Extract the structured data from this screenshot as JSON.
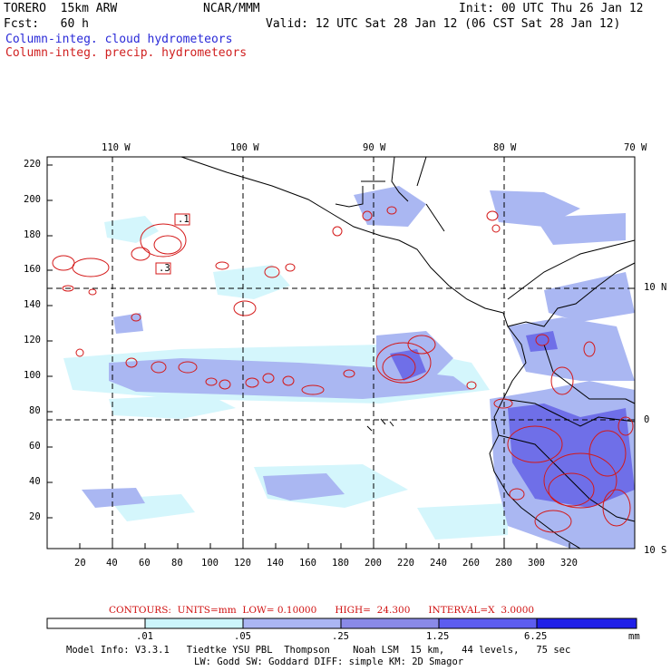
{
  "header": {
    "model": "TORERO  15km ARW",
    "org": "NCAR/MMM",
    "init": "Init: 00 UTC Thu 26 Jan 12",
    "fcst": "Fcst:   60 h",
    "valid": "Valid: 12 UTC Sat 28 Jan 12 (06 CST Sat 28 Jan 12)",
    "field1": "Column-integ. cloud hydrometeors",
    "field2": "Column-integ. precip. hydrometeors"
  },
  "map": {
    "lon_labels": [
      "110 W",
      "100 W",
      "90 W",
      "80 W",
      "70 W"
    ],
    "lat_labels": [
      "10 N",
      "0",
      "10 S"
    ],
    "y_ticks": [
      "220",
      "200",
      "180",
      "160",
      "140",
      "120",
      "100",
      "80",
      "60",
      "40",
      "20"
    ],
    "x_ticks": [
      "20",
      "40",
      "60",
      "80",
      "100",
      "120",
      "140",
      "160",
      "180",
      "200",
      "220",
      "240",
      "260",
      "280",
      "300",
      "320"
    ],
    "contour_labels": [
      ".1",
      ".3"
    ]
  },
  "contours": {
    "text": "CONTOURS:  UNITS=mm  LOW= 0.10000      HIGH=  24.300      INTERVAL=X  3.0000"
  },
  "colorbar": {
    "labels": [
      ".01",
      ".05",
      ".25",
      "1.25",
      "6.25"
    ],
    "unit": "mm",
    "colors": [
      "#ffffff",
      "#ccf5fb",
      "#abb6f3",
      "#8a8ae8",
      "#5d5df0",
      "#2020e8"
    ]
  },
  "footer": {
    "line1": "Model Info: V3.3.1   Tiedtke YSU PBL  Thompson    Noah LSM  15 km,   44 levels,   75 sec",
    "line2": "LW: Godd SW: Goddard DIFF: simple KM: 2D Smagor"
  }
}
